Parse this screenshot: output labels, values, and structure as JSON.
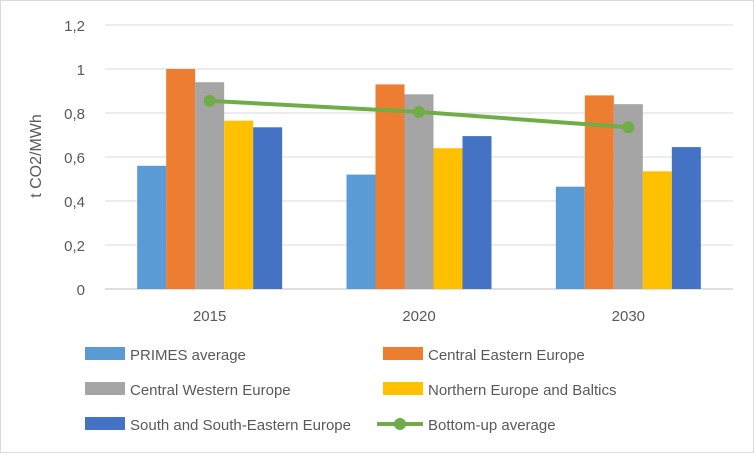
{
  "chart_data": {
    "type": "bar",
    "title": "",
    "xlabel": "",
    "ylabel": "t CO2/MWh",
    "categories": [
      "2015",
      "2020",
      "2030"
    ],
    "ylim": [
      0,
      1.2
    ],
    "yticks": [
      "0",
      "0,2",
      "0,4",
      "0,6",
      "0,8",
      "1",
      "1,2"
    ],
    "ytick_values": [
      0,
      0.2,
      0.4,
      0.6,
      0.8,
      1.0,
      1.2
    ],
    "grid": true,
    "legend_position": "bottom",
    "series": [
      {
        "name": "PRIMES average",
        "kind": "bar",
        "color": "#5b9bd5",
        "values": [
          0.56,
          0.52,
          0.465
        ]
      },
      {
        "name": "Central Eastern Europe",
        "kind": "bar",
        "color": "#ed7d31",
        "values": [
          1.0,
          0.93,
          0.88
        ]
      },
      {
        "name": "Central Western Europe",
        "kind": "bar",
        "color": "#a5a5a5",
        "values": [
          0.94,
          0.885,
          0.84
        ]
      },
      {
        "name": "Northern Europe and Baltics",
        "kind": "bar",
        "color": "#ffc000",
        "values": [
          0.765,
          0.64,
          0.535
        ]
      },
      {
        "name": "South and South-Eastern Europe",
        "kind": "bar",
        "color": "#4472c4",
        "values": [
          0.735,
          0.695,
          0.645
        ]
      },
      {
        "name": "Bottom-up average",
        "kind": "line",
        "color": "#70ad47",
        "values": [
          0.855,
          0.805,
          0.735
        ]
      }
    ]
  }
}
